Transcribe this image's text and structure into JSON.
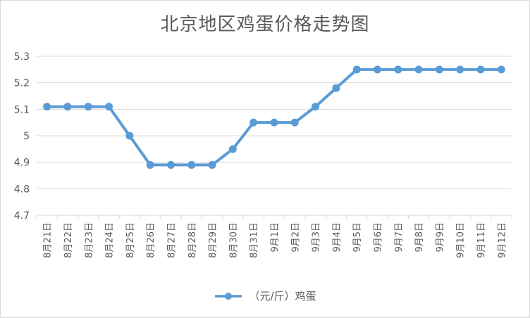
{
  "chart_data": {
    "type": "line",
    "title": "北京地区鸡蛋价格走势图",
    "categories": [
      "8月21日",
      "8月22日",
      "8月23日",
      "8月24日",
      "8月25日",
      "8月26日",
      "8月27日",
      "8月28日",
      "8月29日",
      "8月30日",
      "8月31日",
      "9月1日",
      "9月2日",
      "9月3日",
      "9月4日",
      "9月5日",
      "9月6日",
      "9月7日",
      "9月8日",
      "9月9日",
      "9月10日",
      "9月11日",
      "9月12日"
    ],
    "series": [
      {
        "name": "（元/斤）鸡蛋",
        "values": [
          5.11,
          5.11,
          5.11,
          5.11,
          5.0,
          4.89,
          4.89,
          4.89,
          4.89,
          4.95,
          5.05,
          5.05,
          5.05,
          5.11,
          5.18,
          5.25,
          5.25,
          5.25,
          5.25,
          5.25,
          5.25,
          5.25,
          5.25
        ],
        "color": "#5b9bd5"
      }
    ],
    "ylim": [
      4.7,
      5.3
    ],
    "yticks": [
      "4.7",
      "4.8",
      "4.9",
      "5",
      "5.1",
      "5.2",
      "5.3"
    ],
    "grid": true,
    "legend_position": "bottom"
  }
}
